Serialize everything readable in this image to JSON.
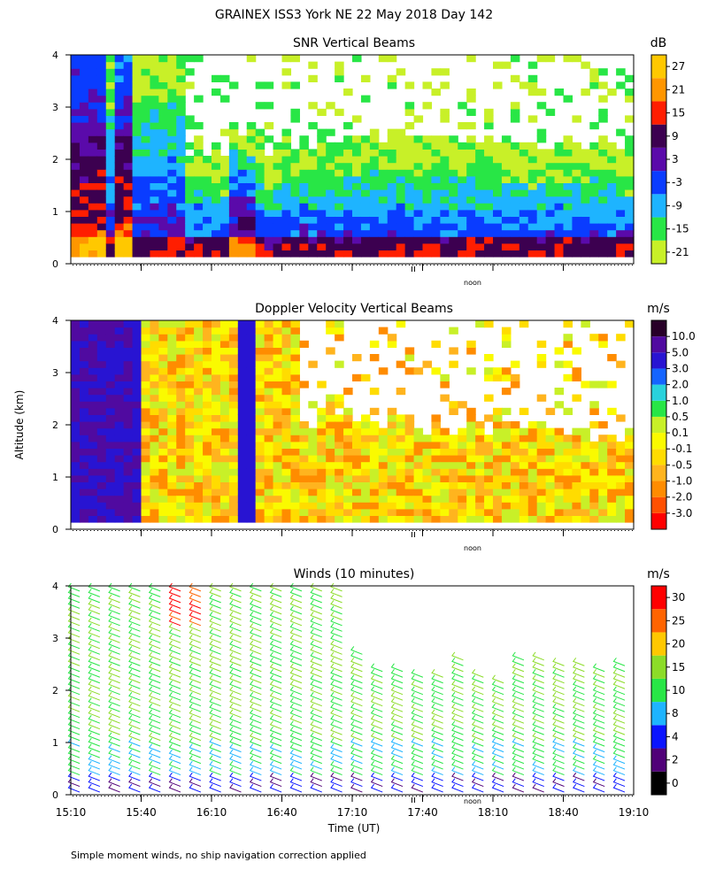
{
  "title": "GRAINEX ISS3 York NE  22 May 2018 Day 142",
  "ylabel": "Altitude (km)",
  "xlabel": "Time (UT)",
  "footnote": "Simple moment winds, no ship navigation correction applied",
  "noon_label": "noon",
  "chart_data": [
    {
      "type": "heatmap",
      "title": "SNR Vertical Beams",
      "unit": "dB",
      "xlim": [
        "15:10",
        "19:10"
      ],
      "ylim": [
        0,
        4
      ],
      "yticks": [
        "0",
        "1",
        "2",
        "3",
        "4"
      ],
      "colorbar": {
        "colors": [
          "#c8f028",
          "#28e646",
          "#1eb4ff",
          "#0a3cff",
          "#5a0aaa",
          "#3c0050",
          "#ff1e00",
          "#ff9600",
          "#ffc800"
        ],
        "labels": [
          "-21",
          "-15",
          "-9",
          "-3",
          "3",
          "9",
          "15",
          "21",
          "27"
        ]
      }
    },
    {
      "type": "heatmap",
      "title": "Doppler Velocity Vertical Beams",
      "unit": "m/s",
      "xlim": [
        "15:10",
        "19:10"
      ],
      "ylim": [
        0,
        4
      ],
      "yticks": [
        "0",
        "1",
        "2",
        "3",
        "4"
      ],
      "colorbar": {
        "colors": [
          "#ff0000",
          "#ff5000",
          "#ff8c00",
          "#ffb41e",
          "#ffdc00",
          "#fafa00",
          "#c8f028",
          "#28e646",
          "#28d2dc",
          "#1464ff",
          "#2814d2",
          "#500aa0",
          "#280028"
        ],
        "labels": [
          "-3.0",
          "-2.0",
          "-1.0",
          "-0.5",
          "-0.1",
          "0.1",
          "0.5",
          "1.0",
          "2.0",
          "3.0",
          "5.0",
          "10.0"
        ]
      }
    },
    {
      "type": "barbs",
      "title": "Winds (10 minutes)",
      "unit": "m/s",
      "xlim": [
        "15:10",
        "19:10"
      ],
      "ylim": [
        0,
        4
      ],
      "yticks": [
        "0",
        "1",
        "2",
        "3",
        "4"
      ],
      "xticks": [
        "15:10",
        "15:40",
        "16:10",
        "16:40",
        "17:10",
        "17:40",
        "18:10",
        "18:40",
        "19:10"
      ],
      "colorbar": {
        "colors": [
          "#000000",
          "#500078",
          "#0a14ff",
          "#1eb4ff",
          "#28e646",
          "#8cdc28",
          "#ffc800",
          "#ff6400",
          "#ff0000"
        ],
        "labels": [
          "0",
          "2",
          "4",
          "8",
          "10",
          "15",
          "20",
          "25",
          "30"
        ]
      }
    }
  ]
}
